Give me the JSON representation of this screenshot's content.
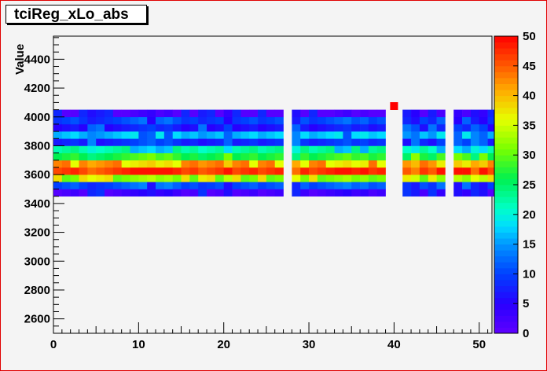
{
  "chart_data": {
    "type": "heatmap",
    "title": "tciReg_xLo_abs",
    "xlabel": "",
    "ylabel": "Value",
    "xlim": [
      0,
      51.5
    ],
    "ylim": [
      2500,
      4560
    ],
    "x_ticks": [
      0,
      10,
      20,
      30,
      40,
      50
    ],
    "y_ticks": [
      2600,
      2800,
      3000,
      3200,
      3400,
      3600,
      3800,
      4000,
      4200,
      4400
    ],
    "colorbar": {
      "min": 0,
      "max": 50,
      "ticks": [
        0,
        5,
        10,
        15,
        20,
        25,
        30,
        35,
        40,
        45,
        50
      ]
    },
    "y_bins": [
      3450,
      3500,
      3550,
      3600,
      3650,
      3700,
      3750,
      3800,
      3850,
      3900,
      3950,
      4000,
      4050
    ],
    "columns": [
      [
        0,
        51,
        3
      ],
      [
        1,
        51,
        4
      ],
      [
        2,
        51,
        5
      ],
      [
        3,
        51,
        2
      ],
      [
        4,
        51,
        5
      ],
      [
        5,
        51,
        6
      ],
      [
        6,
        51,
        7
      ],
      [
        7,
        51,
        5
      ],
      [
        8,
        51,
        3
      ],
      [
        9,
        51,
        4
      ],
      [
        10,
        51,
        5
      ],
      [
        11,
        51,
        6
      ],
      [
        12,
        51,
        3
      ],
      [
        13,
        51,
        7
      ],
      [
        14,
        51,
        4
      ],
      [
        15,
        51,
        7
      ],
      [
        16,
        51,
        5
      ],
      [
        17,
        51,
        2
      ],
      [
        18,
        51,
        6
      ],
      [
        19,
        51,
        4
      ],
      [
        20,
        51,
        3
      ],
      [
        21,
        51,
        5
      ],
      [
        22,
        51,
        6
      ],
      [
        23,
        51,
        7
      ],
      [
        24,
        51,
        4
      ],
      [
        25,
        51,
        5
      ],
      [
        26,
        51,
        3
      ],
      [
        28,
        51,
        6
      ],
      [
        29,
        51,
        5
      ],
      [
        30,
        51,
        2
      ],
      [
        31,
        51,
        6
      ],
      [
        32,
        51,
        4
      ],
      [
        33,
        51,
        5
      ],
      [
        34,
        51,
        3
      ],
      [
        35,
        51,
        6
      ],
      [
        36,
        51,
        7
      ],
      [
        37,
        51,
        4
      ],
      [
        38,
        51,
        5
      ],
      [
        41,
        51,
        3
      ],
      [
        42,
        51,
        6
      ],
      [
        43,
        51,
        5
      ],
      [
        44,
        51,
        2
      ],
      [
        45,
        51,
        4
      ],
      [
        47,
        51,
        6
      ],
      [
        48,
        51,
        3
      ],
      [
        49,
        51,
        5
      ],
      [
        50,
        51,
        2
      ],
      [
        51,
        51,
        4
      ]
    ],
    "profile_ybins": [
      3450,
      3500,
      3550,
      3600,
      3650,
      3700,
      3750,
      3800,
      3850,
      3900,
      3950,
      4000
    ],
    "profile_values": [
      5,
      10,
      34,
      47,
      40,
      28,
      20,
      10,
      15,
      9,
      9,
      4
    ],
    "outliers": [
      {
        "x": 40,
        "y": 4075,
        "value": 50
      }
    ],
    "grid": false,
    "legend": "colorbar-right"
  }
}
